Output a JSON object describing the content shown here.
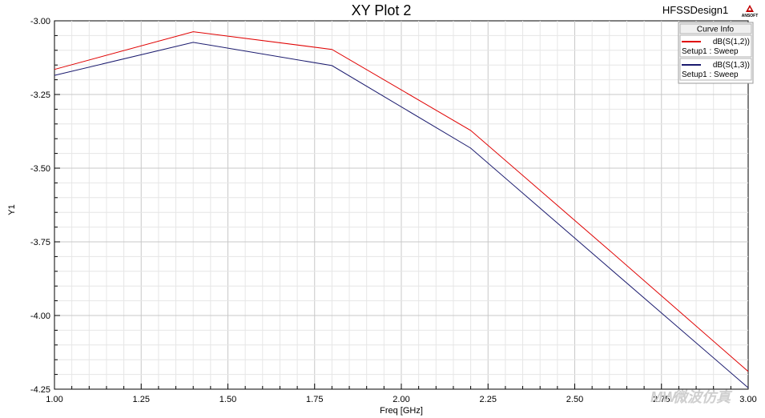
{
  "header": {
    "design_name": "HFSSDesign1",
    "logo_text": "ANSOFT"
  },
  "watermark": "微波仿真",
  "chart_data": {
    "type": "line",
    "title": "XY Plot 2",
    "xlabel": "Freq [GHz]",
    "ylabel": "Y1",
    "xlim": [
      1.0,
      3.0
    ],
    "ylim": [
      -4.25,
      -3.0
    ],
    "x_ticks": [
      "1.00",
      "1.25",
      "1.50",
      "1.75",
      "2.00",
      "2.25",
      "2.50",
      "2.75",
      "3.00"
    ],
    "y_ticks": [
      "-3.00",
      "-3.25",
      "-3.50",
      "-3.75",
      "-4.00",
      "-4.25"
    ],
    "grid": true,
    "legend_title": "Curve Info",
    "legend_position": "top-right",
    "series": [
      {
        "name": "dB(S(1,2))",
        "setup": "Setup1 : Sweep",
        "color": "#e00000",
        "x": [
          1.0,
          1.4,
          1.8,
          2.2,
          2.6,
          3.0
        ],
        "y": [
          -3.165,
          -3.037,
          -3.097,
          -3.372,
          -3.779,
          -4.19
        ]
      },
      {
        "name": "dB(S(1,3))",
        "setup": "Setup1 : Sweep",
        "color": "#1a1a6e",
        "x": [
          1.0,
          1.4,
          1.8,
          2.2,
          2.6,
          3.0
        ],
        "y": [
          -3.185,
          -3.073,
          -3.152,
          -3.432,
          -3.839,
          -4.245
        ]
      }
    ]
  }
}
